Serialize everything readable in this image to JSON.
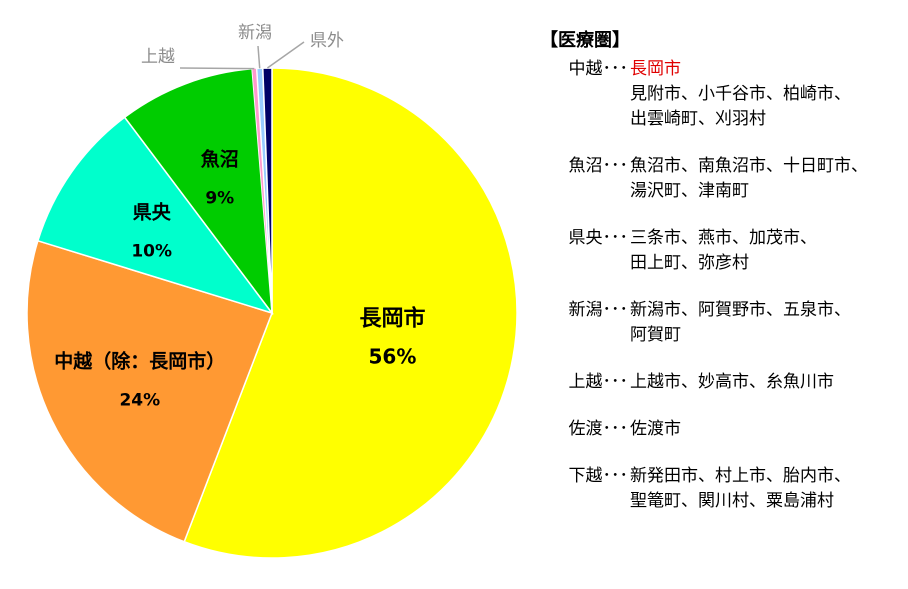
{
  "chart_data": {
    "type": "pie",
    "slices": [
      {
        "label": "長岡市",
        "value": 56,
        "value_label": "56%",
        "color": "#ffff00"
      },
      {
        "label": "中越（除：長岡市）",
        "value": 24,
        "value_label": "24%",
        "color": "#ff9933"
      },
      {
        "label": "県央",
        "value": 10,
        "value_label": "10%",
        "color": "#00ffcc"
      },
      {
        "label": "魚沼",
        "value": 9,
        "value_label": "9%",
        "color": "#00cc00"
      },
      {
        "label": "上越",
        "value": 0.3,
        "value_label": "",
        "color": "#ff99cc"
      },
      {
        "label": "新潟",
        "value": 0.4,
        "value_label": "",
        "color": "#99ccff"
      },
      {
        "label": "県外",
        "value": 0.6,
        "value_label": "",
        "color": "#000066"
      }
    ]
  },
  "legend": {
    "title": "【医療圏】",
    "groups": [
      {
        "region": "中越･･･",
        "highlight": "長岡市",
        "lines": [
          "見附市、小千谷市、柏崎市、",
          "出雲崎町、刈羽村"
        ]
      },
      {
        "region": "魚沼･･･",
        "lines": [
          "魚沼市、南魚沼市、十日町市、",
          "湯沢町、津南町"
        ]
      },
      {
        "region": "県央･･･",
        "lines": [
          "三条市、燕市、加茂市、",
          "田上町、弥彦村"
        ]
      },
      {
        "region": "新潟･･･",
        "lines": [
          "新潟市、阿賀野市、五泉市、",
          "阿賀町"
        ]
      },
      {
        "region": "上越･･･",
        "lines": [
          "上越市、妙高市、糸魚川市"
        ]
      },
      {
        "region": "佐渡･･･",
        "lines": [
          "佐渡市"
        ]
      },
      {
        "region": "下越･･･",
        "lines": [
          "新発田市、村上市、胎内市、",
          "聖篭町、関川村、粟島浦村"
        ]
      }
    ]
  }
}
